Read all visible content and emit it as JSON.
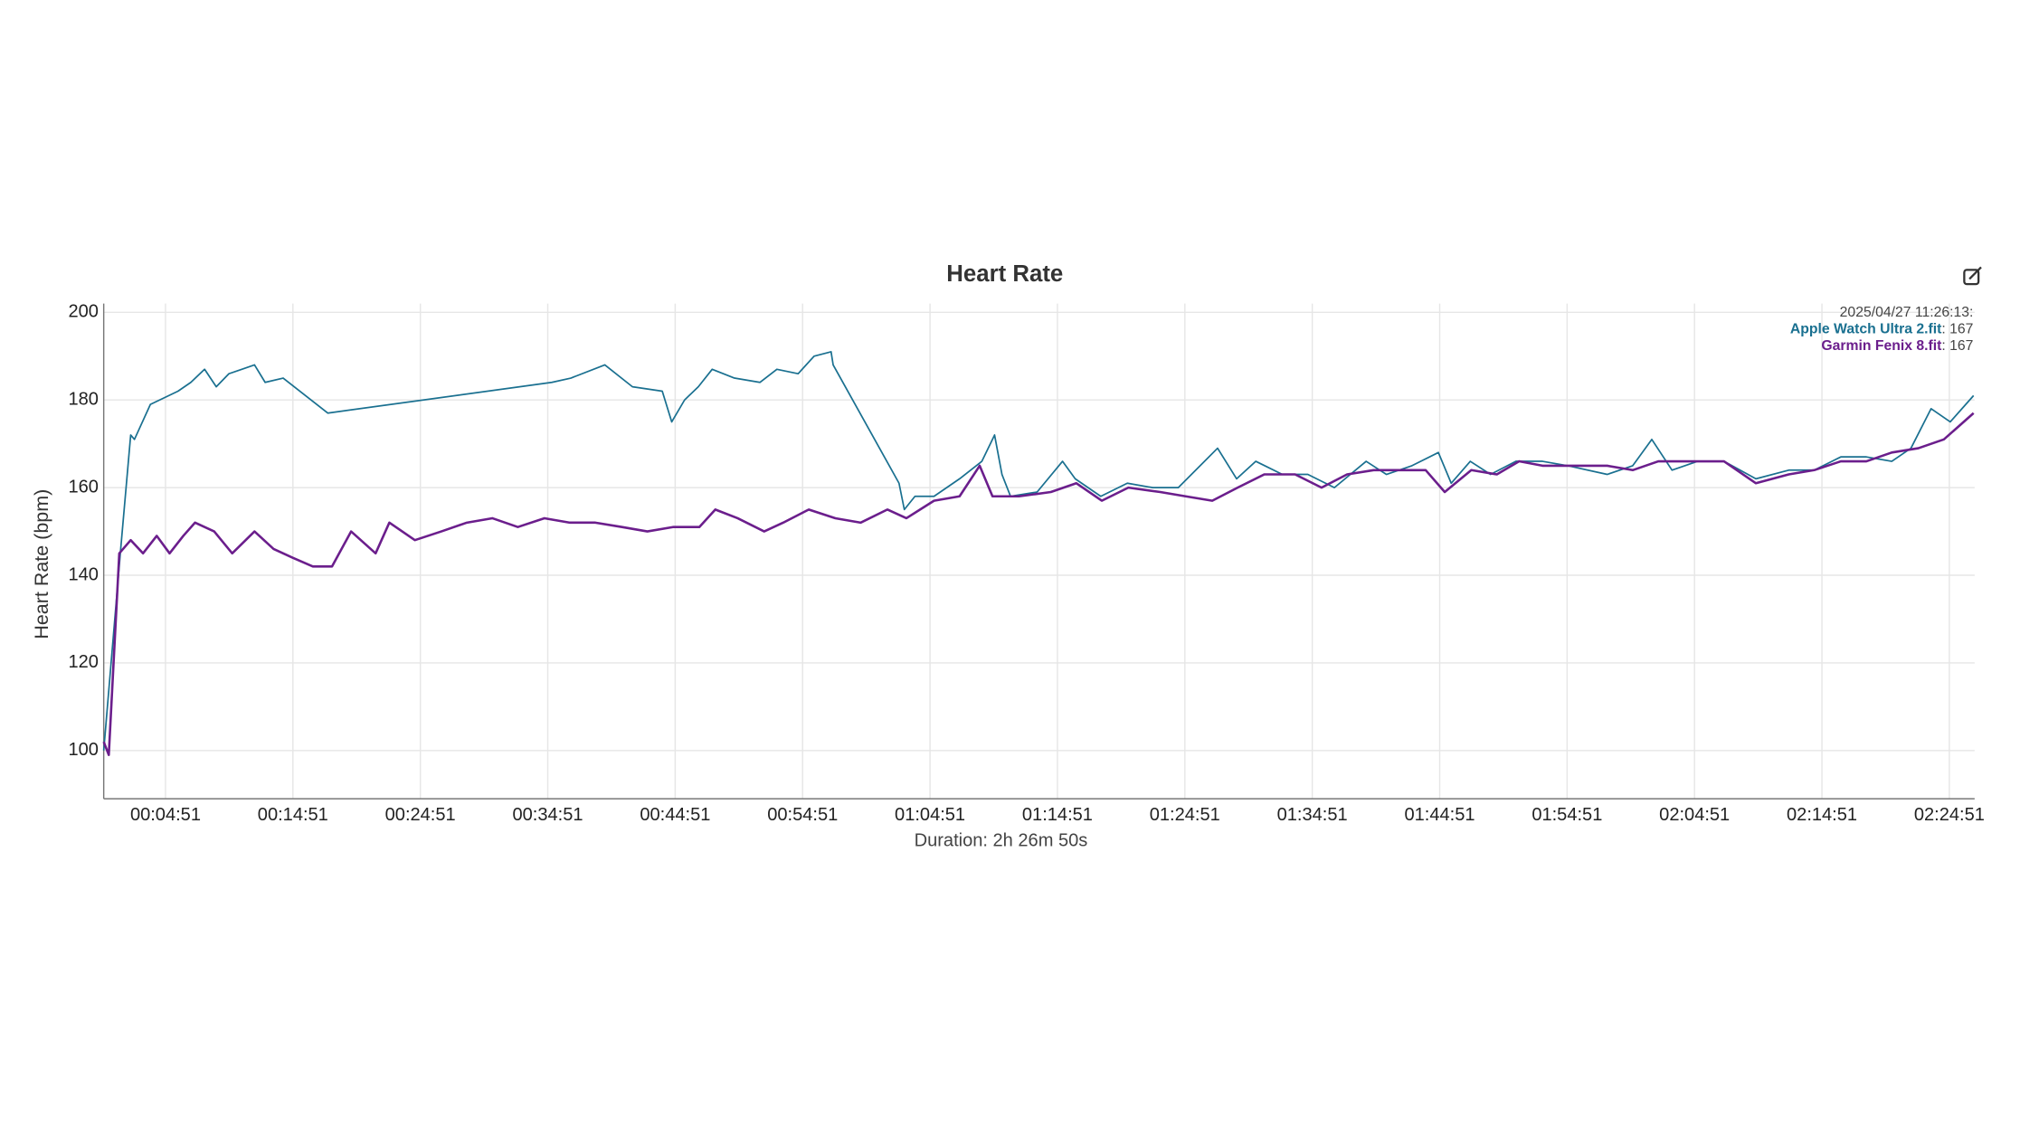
{
  "chart_data": {
    "type": "line",
    "title": "Heart Rate",
    "ylabel": "Heart Rate (bpm)",
    "xlabel": "Duration: 2h 26m 50s",
    "xlim": [
      0,
      8810
    ],
    "ylim": [
      89,
      202
    ],
    "yticks": [
      100,
      120,
      140,
      160,
      180,
      200
    ],
    "xticks": [
      {
        "value": 291,
        "label": "00:04:51"
      },
      {
        "value": 891,
        "label": "00:14:51"
      },
      {
        "value": 1491,
        "label": "00:24:51"
      },
      {
        "value": 2091,
        "label": "00:34:51"
      },
      {
        "value": 2691,
        "label": "00:44:51"
      },
      {
        "value": 3291,
        "label": "00:54:51"
      },
      {
        "value": 3891,
        "label": "01:04:51"
      },
      {
        "value": 4491,
        "label": "01:14:51"
      },
      {
        "value": 5091,
        "label": "01:24:51"
      },
      {
        "value": 5691,
        "label": "01:34:51"
      },
      {
        "value": 6291,
        "label": "01:44:51"
      },
      {
        "value": 6891,
        "label": "01:54:51"
      },
      {
        "value": 7491,
        "label": "02:04:51"
      },
      {
        "value": 8091,
        "label": "02:14:51"
      },
      {
        "value": 8691,
        "label": "02:24:51"
      }
    ],
    "grid": true,
    "tooltip": {
      "time": "2025/04/27 11:26:13:",
      "separator": ": ",
      "values": [
        167,
        167
      ]
    },
    "series": [
      {
        "name": "Apple Watch Ultra 2.fit",
        "color": "#1a7090",
        "x": [
          0,
          78,
          127,
          145,
          220,
          350,
          410,
          475,
          530,
          590,
          650,
          710,
          760,
          845,
          1055,
          2110,
          2200,
          2360,
          2490,
          2630,
          2675,
          2735,
          2800,
          2865,
          2970,
          3090,
          3170,
          3270,
          3345,
          3425,
          3435,
          3745,
          3770,
          3820,
          3910,
          4030,
          4135,
          4195,
          4230,
          4270,
          4395,
          4515,
          4575,
          4695,
          4820,
          4940,
          5060,
          5245,
          5335,
          5425,
          5550,
          5670,
          5795,
          5945,
          6040,
          6160,
          6285,
          6345,
          6435,
          6530,
          6650,
          6775,
          6895,
          7080,
          7200,
          7290,
          7385,
          7505,
          7630,
          7780,
          7935,
          8055,
          8180,
          8300,
          8420,
          8510,
          8605,
          8695,
          8805
        ],
        "values": [
          100,
          145,
          172,
          171,
          179,
          182,
          184,
          187,
          183,
          186,
          187,
          188,
          184,
          185,
          177,
          184,
          185,
          188,
          183,
          182,
          175,
          180,
          183,
          187,
          185,
          184,
          187,
          186,
          190,
          191,
          188,
          161,
          155,
          158,
          158,
          162,
          166,
          172,
          163,
          158,
          159,
          166,
          162,
          158,
          161,
          160,
          160,
          169,
          162,
          166,
          163,
          163,
          160,
          166,
          163,
          165,
          168,
          161,
          166,
          163,
          166,
          166,
          165,
          163,
          165,
          171,
          164,
          166,
          166,
          162,
          164,
          164,
          167,
          167,
          166,
          169,
          178,
          175,
          181
        ]
      },
      {
        "name": "Garmin Fenix 8.fit",
        "color": "#6b1e8c",
        "x": [
          0,
          24,
          73,
          127,
          185,
          250,
          310,
          375,
          430,
          520,
          605,
          710,
          800,
          890,
          985,
          1075,
          1165,
          1280,
          1345,
          1465,
          1590,
          1710,
          1830,
          1950,
          2075,
          2195,
          2315,
          2440,
          2560,
          2680,
          2805,
          2880,
          2985,
          3110,
          3200,
          3320,
          3445,
          3565,
          3690,
          3780,
          3910,
          4030,
          4125,
          4185,
          4310,
          4460,
          4580,
          4700,
          4825,
          4975,
          5095,
          5220,
          5340,
          5465,
          5610,
          5735,
          5855,
          5980,
          6100,
          6225,
          6315,
          6440,
          6560,
          6665,
          6775,
          6895,
          7080,
          7200,
          7320,
          7445,
          7630,
          7780,
          7935,
          8055,
          8180,
          8300,
          8420,
          8545,
          8665,
          8805
        ],
        "values": [
          102,
          99,
          145,
          148,
          145,
          149,
          145,
          149,
          152,
          150,
          145,
          150,
          146,
          144,
          142,
          142,
          150,
          145,
          152,
          148,
          150,
          152,
          153,
          151,
          153,
          152,
          152,
          151,
          150,
          151,
          151,
          155,
          153,
          150,
          152,
          155,
          153,
          152,
          155,
          153,
          157,
          158,
          165,
          158,
          158,
          159,
          161,
          157,
          160,
          159,
          158,
          157,
          160,
          163,
          163,
          160,
          163,
          164,
          164,
          164,
          159,
          164,
          163,
          166,
          165,
          165,
          165,
          164,
          166,
          166,
          166,
          161,
          163,
          164,
          166,
          166,
          168,
          169,
          171,
          177
        ]
      }
    ]
  }
}
